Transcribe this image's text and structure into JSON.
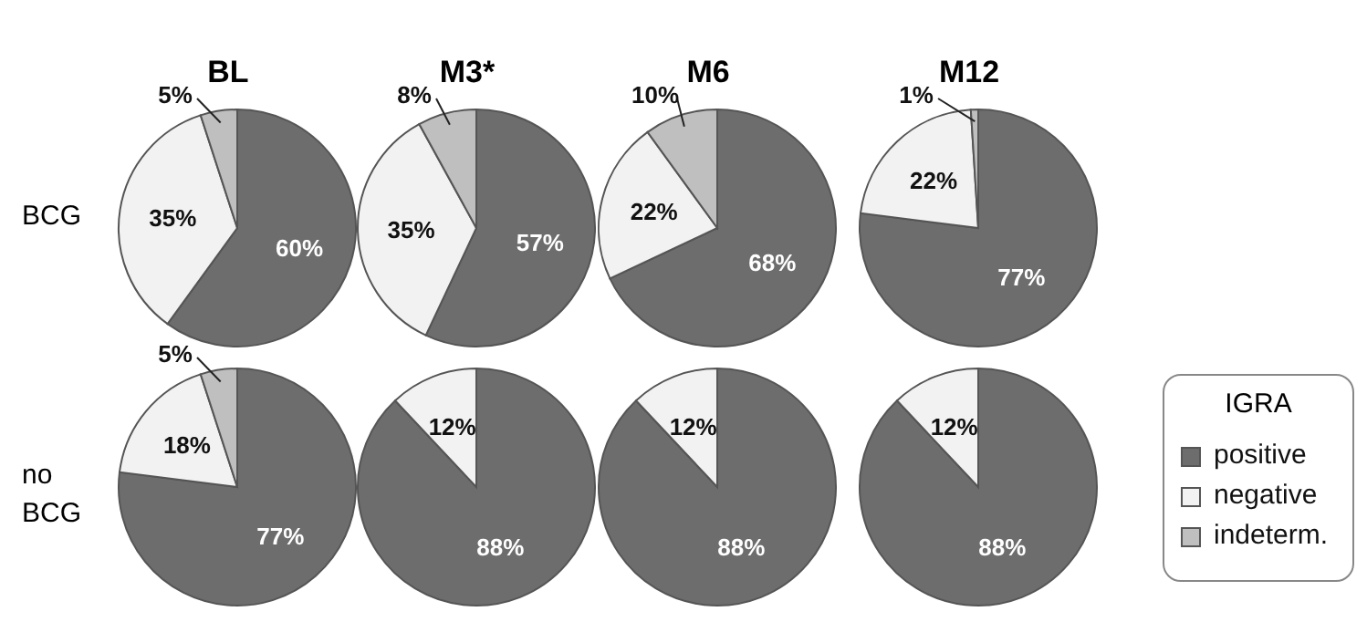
{
  "chart_data": [
    {
      "type": "pie",
      "title": "BL",
      "ylabel": "BCG",
      "categories": [
        null,
        null,
        null
      ],
      "values": [
        60,
        35,
        5
      ],
      "colors": [
        "#6d6d6d",
        "#f2f2f2",
        "#bfbfbf"
      ],
      "value_labels": [
        "60%",
        "35%",
        "5%"
      ]
    },
    {
      "type": "pie",
      "title": "M3*",
      "categories": [
        null,
        null,
        null
      ],
      "values": [
        57,
        35,
        8
      ],
      "colors": [
        "#6d6d6d",
        "#f2f2f2",
        "#bfbfbf"
      ],
      "value_labels": [
        "57%",
        "35%",
        "8%"
      ]
    },
    {
      "type": "pie",
      "title": "M6",
      "categories": [
        null,
        null,
        null
      ],
      "values": [
        68,
        22,
        10
      ],
      "colors": [
        "#6d6d6d",
        "#f2f2f2",
        "#bfbfbf"
      ],
      "value_labels": [
        "68%",
        "22%",
        "10%"
      ]
    },
    {
      "type": "pie",
      "title": "M12",
      "categories": [
        null,
        null,
        null
      ],
      "values": [
        77,
        22,
        1
      ],
      "colors": [
        "#6d6d6d",
        "#f2f2f2",
        "#bfbfbf"
      ],
      "value_labels": [
        "77%",
        "22%",
        "1%"
      ]
    },
    {
      "type": "pie",
      "ylabel": "no BCG",
      "categories": [
        null,
        null,
        null
      ],
      "values": [
        77,
        18,
        5
      ],
      "colors": [
        "#6d6d6d",
        "#f2f2f2",
        "#bfbfbf"
      ],
      "value_labels": [
        "77%",
        "18%",
        "5%"
      ]
    },
    {
      "type": "pie",
      "categories": [
        null,
        null,
        null
      ],
      "values": [
        88,
        12,
        0
      ],
      "colors": [
        "#6d6d6d",
        "#f2f2f2",
        "#bfbfbf"
      ],
      "value_labels": [
        "88%",
        "12%",
        null
      ]
    },
    {
      "type": "pie",
      "categories": [
        null,
        null,
        null
      ],
      "values": [
        88,
        12,
        0
      ],
      "colors": [
        "#6d6d6d",
        "#f2f2f2",
        "#bfbfbf"
      ],
      "value_labels": [
        "88%",
        "12%",
        null
      ]
    },
    {
      "type": "pie",
      "legend_title": "IGRA",
      "legend": "right",
      "categories": [
        "positive",
        "negative",
        "indeterm."
      ],
      "values": [
        88,
        12,
        0
      ],
      "colors": [
        "#6d6d6d",
        "#f2f2f2",
        "#bfbfbf"
      ],
      "value_labels": [
        "88%",
        "12%",
        null
      ]
    }
  ]
}
